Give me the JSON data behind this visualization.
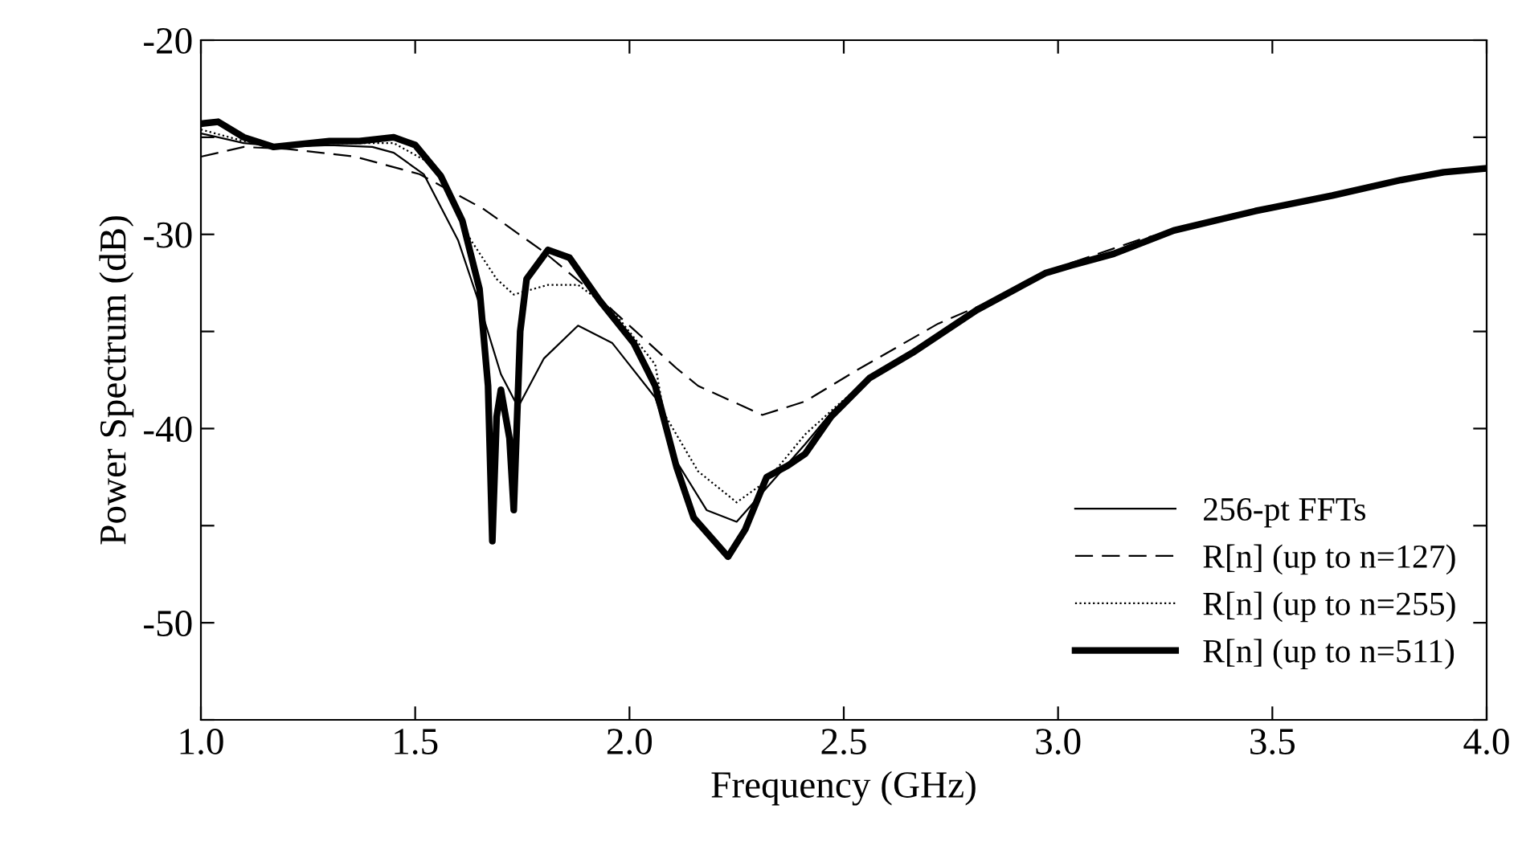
{
  "chart_data": {
    "type": "line",
    "xlabel": "Frequency (GHz)",
    "ylabel": "Power Spectrum (dB)",
    "xlim": [
      1.0,
      4.0
    ],
    "ylim": [
      -55,
      -20
    ],
    "xticks": [
      {
        "value": 1.0,
        "label": "1.0"
      },
      {
        "value": 1.5,
        "label": "1.5"
      },
      {
        "value": 2.0,
        "label": "2.0"
      },
      {
        "value": 2.5,
        "label": "2.5"
      },
      {
        "value": 3.0,
        "label": "3.0"
      },
      {
        "value": 3.5,
        "label": "3.5"
      },
      {
        "value": 4.0,
        "label": "4.0"
      }
    ],
    "yticks": [
      -20,
      {
        "value": -25,
        "label": null
      },
      -30,
      {
        "value": -35,
        "label": null
      },
      -40,
      {
        "value": -45,
        "label": null
      },
      -50,
      {
        "value": -55,
        "label": null
      }
    ],
    "grid": false,
    "legend": "bottom right",
    "marker": "none",
    "series": [
      {
        "name": "256-pt FFTs",
        "color": "#000000",
        "line_style": "solid",
        "x": [
          1.0,
          1.1,
          1.2,
          1.3,
          1.4,
          1.45,
          1.52,
          1.6,
          1.65,
          1.7,
          1.74,
          1.8,
          1.88,
          1.96,
          2.06,
          2.11,
          2.18,
          2.25,
          2.31,
          2.41,
          2.47,
          2.56,
          2.66,
          2.81,
          2.97,
          3.03,
          3.13,
          3.27,
          3.46,
          3.64,
          3.8,
          3.9,
          4.0
        ],
        "values": [
          -24.8,
          -25.3,
          -25.5,
          -25.4,
          -25.5,
          -25.8,
          -26.9,
          -30.3,
          -33.6,
          -37.2,
          -38.9,
          -36.4,
          -34.7,
          -35.6,
          -38.4,
          -41.7,
          -44.2,
          -44.8,
          -43.3,
          -40.8,
          -39.2,
          -37.4,
          -36.1,
          -33.9,
          -32.0,
          -31.6,
          -31.0,
          -29.8,
          -28.8,
          -28.0,
          -27.2,
          -26.8,
          -26.6
        ]
      },
      {
        "name": "R[n] (up to n=127)",
        "color": "#000000",
        "line_style": "dashed",
        "x": [
          1.0,
          1.1,
          1.2,
          1.36,
          1.51,
          1.66,
          1.8,
          1.92,
          2.11,
          2.16,
          2.31,
          2.41,
          2.53,
          2.72,
          2.91,
          3.0,
          3.2,
          3.5,
          3.8,
          4.0
        ],
        "values": [
          -26.0,
          -25.5,
          -25.6,
          -26.0,
          -26.9,
          -28.7,
          -30.9,
          -33.1,
          -36.9,
          -37.8,
          -39.3,
          -38.6,
          -37.0,
          -34.6,
          -32.8,
          -31.7,
          -30.2,
          -28.6,
          -27.2,
          -26.6
        ]
      },
      {
        "name": "R[n] (up to n=255)",
        "color": "#000000",
        "line_style": "dotted",
        "x": [
          1.0,
          1.1,
          1.2,
          1.3,
          1.45,
          1.54,
          1.63,
          1.69,
          1.73,
          1.81,
          1.88,
          1.96,
          2.06,
          2.08,
          2.16,
          2.25,
          2.32,
          2.41,
          2.48,
          2.56,
          2.66,
          2.81,
          2.97,
          3.03,
          3.13,
          3.27,
          3.46,
          3.64,
          3.8,
          3.9,
          4.0
        ],
        "values": [
          -24.6,
          -25.2,
          -25.5,
          -25.3,
          -25.3,
          -26.4,
          -30.3,
          -32.3,
          -33.1,
          -32.6,
          -32.6,
          -33.9,
          -36.7,
          -39.2,
          -42.2,
          -43.8,
          -42.7,
          -40.3,
          -38.9,
          -37.4,
          -36.1,
          -33.9,
          -32.0,
          -31.6,
          -31.0,
          -29.8,
          -28.8,
          -28.0,
          -27.2,
          -26.8,
          -26.6
        ]
      },
      {
        "name": "R[n] (up to n=511)",
        "color": "#000000",
        "line_style": "solid",
        "x": [
          1.0,
          1.04,
          1.1,
          1.17,
          1.3,
          1.37,
          1.45,
          1.5,
          1.56,
          1.61,
          1.65,
          1.67,
          1.68,
          1.69,
          1.7,
          1.72,
          1.73,
          1.745,
          1.76,
          1.81,
          1.86,
          1.93,
          2.01,
          2.06,
          2.11,
          2.15,
          2.23,
          2.27,
          2.32,
          2.37,
          2.41,
          2.47,
          2.56,
          2.66,
          2.81,
          2.97,
          3.03,
          3.13,
          3.27,
          3.46,
          3.64,
          3.8,
          3.9,
          4.0
        ],
        "values": [
          -24.3,
          -24.2,
          -25.0,
          -25.5,
          -25.2,
          -25.2,
          -25.0,
          -25.4,
          -27.0,
          -29.3,
          -32.8,
          -37.8,
          -45.8,
          -39.4,
          -38.0,
          -40.5,
          -44.2,
          -35.0,
          -32.3,
          -30.8,
          -31.2,
          -33.4,
          -35.6,
          -37.8,
          -42.0,
          -44.6,
          -46.6,
          -45.2,
          -42.5,
          -41.9,
          -41.3,
          -39.4,
          -37.4,
          -36.1,
          -33.9,
          -32.0,
          -31.6,
          -31.0,
          -29.8,
          -28.8,
          -28.0,
          -27.2,
          -26.8,
          -26.6
        ]
      }
    ]
  }
}
